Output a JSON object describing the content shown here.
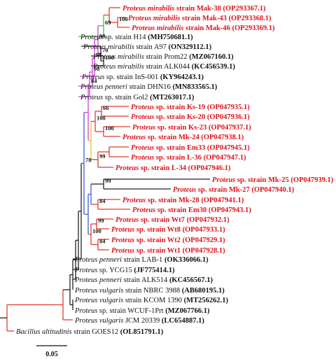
{
  "colors": {
    "highlight_text": "#e0131b",
    "branch_red": "#e23b2e",
    "branch_magenta": "#d040d8",
    "branch_blue": "#3a5fd0",
    "branch_yellow": "#e8c020",
    "branch_green": "#40c040",
    "branch_black": "#222222"
  },
  "leaves": [
    {
      "italic": "Proteus mirabilis",
      "rest": " strain Mak-38 ",
      "acc": "(OP293367.1)",
      "highlight": true
    },
    {
      "italic": "Proteus mirabilis",
      "rest": " strain Mak-43 ",
      "acc": "(OP293368.1)",
      "highlight": true
    },
    {
      "italic": "Proteus mirabilis",
      "rest": " strain Mak-46 ",
      "acc": "(OP293369.1)",
      "highlight": true
    },
    {
      "italic": "Proteus",
      "rest": " sp. strain H14 ",
      "acc": "(MH750681.1)",
      "highlight": false
    },
    {
      "italic": "Proteus mirabilis",
      "rest": " strain A97 ",
      "acc": "(ON329112.1)",
      "highlight": false
    },
    {
      "italic": "Proteus mirabilis",
      "rest": " strain Prom22 ",
      "acc": "(MZ067160.1)",
      "highlight": false
    },
    {
      "italic": "Proteus mirabilis",
      "rest": " strain ALK044 ",
      "acc": "(KC456539.1)",
      "highlight": false
    },
    {
      "italic": "Proteus",
      "rest": " sp. strain InS-001 ",
      "acc": "(KY964243.1)",
      "highlight": false
    },
    {
      "italic": "Proteus penneri",
      "rest": " strain DHN16 ",
      "acc": "(MN833565.1)",
      "highlight": false
    },
    {
      "italic": "Proteus",
      "rest": " sp. strain Gol2 ",
      "acc": "(MT263017.1)",
      "highlight": false
    },
    {
      "italic": "Proteus",
      "rest": " sp. strain Ks-19 ",
      "acc": "(OP047935.1)",
      "highlight": true
    },
    {
      "italic": "Proteus",
      "rest": " sp. strain Ks-20 ",
      "acc": "(OP047936.1)",
      "highlight": true
    },
    {
      "italic": "Proteus",
      "rest": " sp. strain Ks-23 ",
      "acc": "(OP047937.1)",
      "highlight": true
    },
    {
      "italic": "Proteus",
      "rest": " sp. strain Mk-24 ",
      "acc": "(OP047938.1)",
      "highlight": true
    },
    {
      "italic": "Proteus",
      "rest": " sp. strain Em33 ",
      "acc": "(OP047945.1)",
      "highlight": true
    },
    {
      "italic": "Proteus",
      "rest": " sp. strain L-36 ",
      "acc": "(OP047947.1)",
      "highlight": true
    },
    {
      "italic": "Proteus",
      "rest": " sp. strain L-34 ",
      "acc": "(OP047946.1)",
      "highlight": true
    },
    {
      "italic": "Proteus",
      "rest": " sp. strain Mk-25 ",
      "acc": "(OP047939.1)",
      "highlight": true
    },
    {
      "italic": "Proteus",
      "rest": " sp. strain Mk-27 ",
      "acc": "(OP047940.1)",
      "highlight": true
    },
    {
      "italic": "Proteus",
      "rest": " sp. strain Mk-28 ",
      "acc": "(OP047941.1)",
      "highlight": true
    },
    {
      "italic": "Proteus",
      "rest": " sp. strain Em30 ",
      "acc": "(OP047943.1)",
      "highlight": true
    },
    {
      "italic": "Proteus",
      "rest": " sp. strain Wt7 ",
      "acc": "(OP047932.1)",
      "highlight": true
    },
    {
      "italic": "Proteus",
      "rest": " sp. strain Wt8 ",
      "acc": "(OP047933.1)",
      "highlight": true
    },
    {
      "italic": "Proteus",
      "rest": " sp. strain Wt2 ",
      "acc": "(OP047929.1)",
      "highlight": true
    },
    {
      "italic": "Proteus",
      "rest": " sp. strain Wt1 ",
      "acc": "(OP047928.1)",
      "highlight": true
    },
    {
      "italic": "Proteus penneri",
      "rest": " strain LAB-1 ",
      "acc": "(OK336066.1)",
      "highlight": false
    },
    {
      "italic": "Proteus",
      "rest": " sp. YCG15 ",
      "acc": "(JF775414.1)",
      "highlight": false
    },
    {
      "italic": "Proteus penneri",
      "rest": " strain ALK514 ",
      "acc": "(KC456567.1)",
      "highlight": false
    },
    {
      "italic": "Proteus vulgaris",
      "rest": " strain NBRC 3988 ",
      "acc": "(AB680195.1)",
      "highlight": false
    },
    {
      "italic": "Proteus vulgaris",
      "rest": " strain KCOM 1390 ",
      "acc": "(MT256262.1)",
      "highlight": false
    },
    {
      "italic": "Proteus",
      "rest": " sp. strain WCUF-1Prt ",
      "acc": "(MZ067766.1)",
      "highlight": false
    },
    {
      "italic": "Proteus vulgaris",
      "rest": " JCM 20339 ",
      "acc": "(LC654887.1)",
      "highlight": false
    },
    {
      "italic": "Bacillus altitudinis",
      "rest": " strain GOES12 ",
      "acc": "(OL851791.1)",
      "highlight": false
    }
  ],
  "bootstrap": [
    "100",
    "69",
    "70",
    "100",
    "98",
    "98",
    "98",
    "84",
    "66",
    "100",
    "100",
    "99",
    "99",
    "84",
    "99",
    "84",
    "100",
    "78"
  ],
  "scale_bar": {
    "label": "0.05"
  }
}
